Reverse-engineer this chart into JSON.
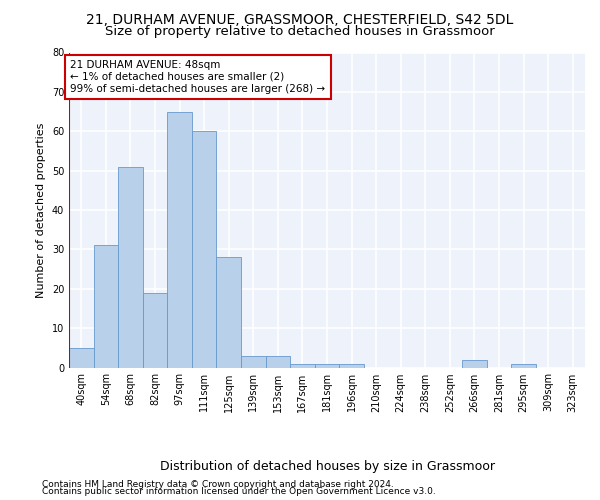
{
  "title": "21, DURHAM AVENUE, GRASSMOOR, CHESTERFIELD, S42 5DL",
  "subtitle": "Size of property relative to detached houses in Grassmoor",
  "xlabel": "Distribution of detached houses by size in Grassmoor",
  "ylabel": "Number of detached properties",
  "categories": [
    "40sqm",
    "54sqm",
    "68sqm",
    "82sqm",
    "97sqm",
    "111sqm",
    "125sqm",
    "139sqm",
    "153sqm",
    "167sqm",
    "181sqm",
    "196sqm",
    "210sqm",
    "224sqm",
    "238sqm",
    "252sqm",
    "266sqm",
    "281sqm",
    "295sqm",
    "309sqm",
    "323sqm"
  ],
  "values": [
    5,
    31,
    51,
    19,
    65,
    60,
    28,
    3,
    3,
    1,
    1,
    1,
    0,
    0,
    0,
    0,
    2,
    0,
    1,
    0,
    0
  ],
  "bar_color": "#b8d0ea",
  "bar_edge_color": "#6699cc",
  "background_color": "#edf2fb",
  "grid_color": "#ffffff",
  "annotation_box_color": "#cc0000",
  "annotation_line1": "21 DURHAM AVENUE: 48sqm",
  "annotation_line2": "← 1% of detached houses are smaller (2)",
  "annotation_line3": "99% of semi-detached houses are larger (268) →",
  "ylim": [
    0,
    80
  ],
  "yticks": [
    0,
    10,
    20,
    30,
    40,
    50,
    60,
    70,
    80
  ],
  "footer_line1": "Contains HM Land Registry data © Crown copyright and database right 2024.",
  "footer_line2": "Contains public sector information licensed under the Open Government Licence v3.0.",
  "title_fontsize": 10,
  "subtitle_fontsize": 9.5,
  "xlabel_fontsize": 9,
  "ylabel_fontsize": 8,
  "tick_fontsize": 7,
  "annotation_fontsize": 7.5,
  "footer_fontsize": 6.5
}
